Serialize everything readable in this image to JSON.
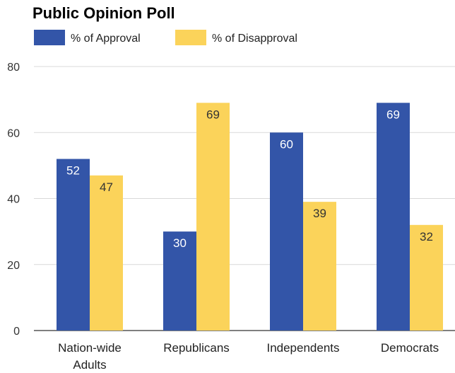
{
  "chart_data": {
    "type": "bar",
    "title": "Public Opinion Poll",
    "xlabel": "",
    "ylabel": "",
    "categories": [
      [
        "Nation-wide",
        "Adults"
      ],
      [
        "Republicans"
      ],
      [
        "Independents"
      ],
      [
        "Democrats"
      ]
    ],
    "series": [
      {
        "name": "% of Approval",
        "color": "#3355a8",
        "values": [
          52,
          30,
          60,
          69
        ]
      },
      {
        "name": "% of Disapproval",
        "color": "#fbd35a",
        "values": [
          47,
          69,
          39,
          32
        ]
      }
    ],
    "ylim": [
      0,
      80
    ],
    "yticks": [
      0,
      20,
      40,
      60,
      80
    ],
    "grid": true,
    "legend_position": "top-left",
    "data_labels": true
  }
}
